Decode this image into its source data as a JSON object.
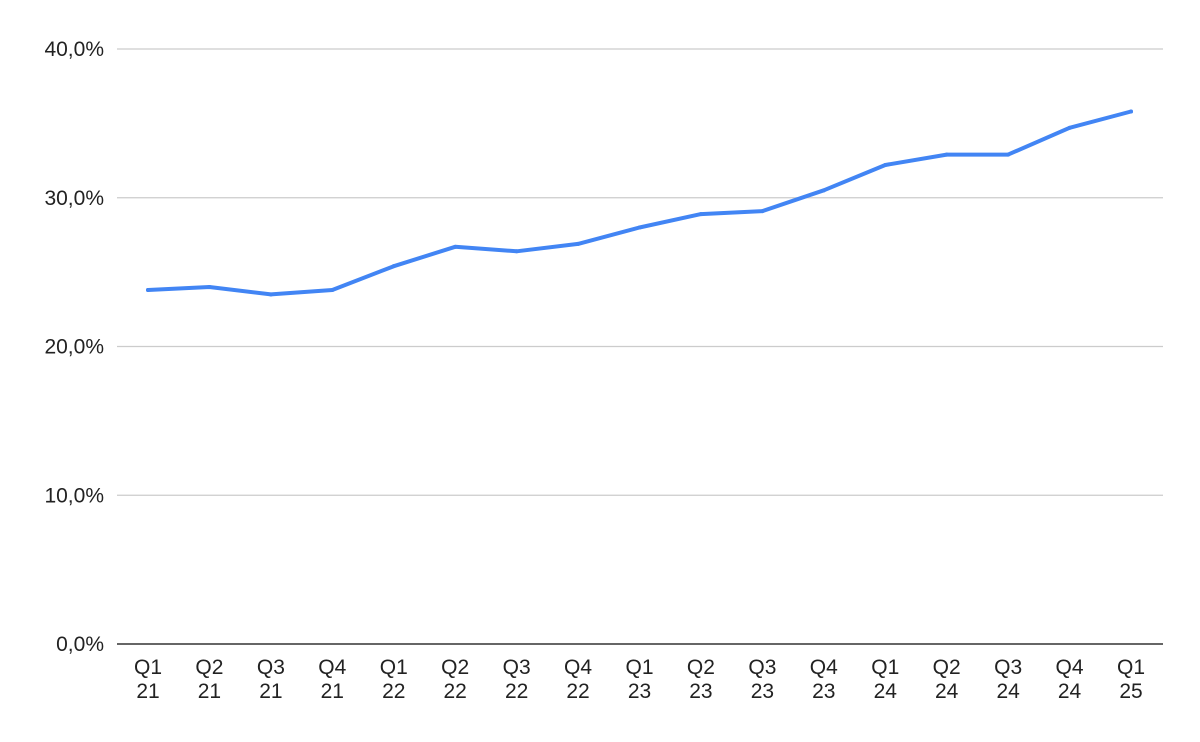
{
  "chart_data": {
    "type": "line",
    "title": "",
    "xlabel": "",
    "ylabel": "",
    "categories": [
      [
        "Q1",
        "21"
      ],
      [
        "Q2",
        "21"
      ],
      [
        "Q3",
        "21"
      ],
      [
        "Q4",
        "21"
      ],
      [
        "Q1",
        "22"
      ],
      [
        "Q2",
        "22"
      ],
      [
        "Q3",
        "22"
      ],
      [
        "Q4",
        "22"
      ],
      [
        "Q1",
        "23"
      ],
      [
        "Q2",
        "23"
      ],
      [
        "Q3",
        "23"
      ],
      [
        "Q4",
        "23"
      ],
      [
        "Q1",
        "24"
      ],
      [
        "Q2",
        "24"
      ],
      [
        "Q3",
        "24"
      ],
      [
        "Q4",
        "24"
      ],
      [
        "Q1",
        "25"
      ]
    ],
    "series": [
      {
        "color": "#4285f4",
        "values": [
          23.8,
          24.0,
          23.5,
          23.8,
          25.4,
          26.7,
          26.4,
          26.9,
          28.0,
          28.9,
          29.1,
          30.5,
          32.2,
          32.9,
          32.9,
          34.7,
          35.8
        ]
      }
    ],
    "ylim": [
      0,
      40
    ],
    "yticks": [
      0,
      10,
      20,
      30,
      40
    ],
    "ytick_labels": [
      "0,0%",
      "10,0%",
      "20,0%",
      "30,0%",
      "40,0%"
    ],
    "grid": true,
    "legend": "none"
  }
}
